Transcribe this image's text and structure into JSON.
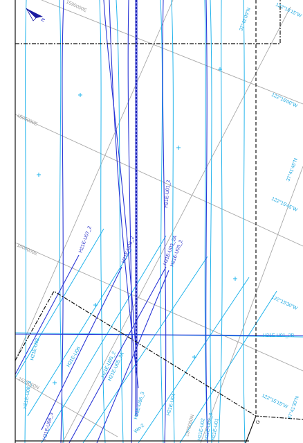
{
  "colors": {
    "background": "#ffffff",
    "grid": "#a8a8a8",
    "line_cyan": "#22b4ec",
    "line_blue": "#2a36d6",
    "line_dark_blue": "#1a1aa0",
    "boundary": "#111111"
  },
  "north_arrow": {
    "icon": "north-arrow-icon",
    "letter": "N"
  },
  "graticule_labels": [
    "37°42'00\"N",
    "122°16'15\"W",
    "122°16'00\"W",
    "37°41'45\"N",
    "122°15'45\"W",
    "122°15'30\"W",
    "37°41'30\"N",
    "122°15'15\"W"
  ],
  "easting_labels": [
    "1590000E",
    "1595000E",
    "1600000E",
    "1575000N"
  ],
  "line_labels": [
    "H21E-U07_2",
    "H21E-U08_2",
    "H21E-U01_2",
    "H21E-U03_2A",
    "H21E-U03_2",
    "H21E-U01_2B"
  ],
  "bottom_labels": [
    "H21E-U02",
    "H21E-U06",
    "H21E-U05_2",
    "H21E-U05_2A",
    "H21E-U06_3",
    "H21E-U08_3",
    "H21E-U04",
    "Wn-2",
    "1575000N",
    "H21E-U06_3",
    "H21E-U02",
    "H21E-U03_3",
    "H21E-U01"
  ],
  "corner_marks": [
    "G"
  ]
}
